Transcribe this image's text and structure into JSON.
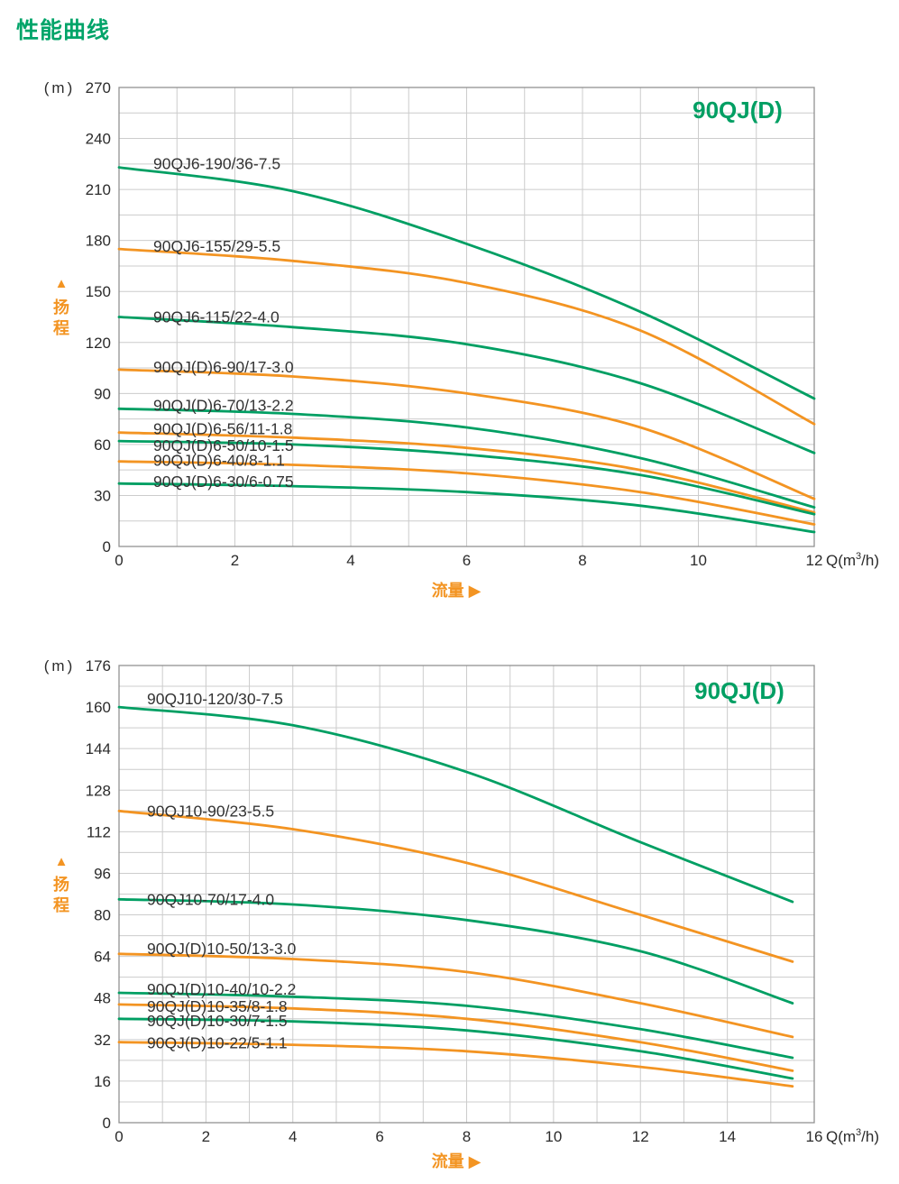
{
  "page": {
    "heading": "性能曲线"
  },
  "colors": {
    "green": "#009f63",
    "orange": "#f39422",
    "heading_green": "#00a469",
    "text": "#2b2b2b",
    "label_text": "#333333",
    "grid": "#cccccc",
    "frame": "#919191"
  },
  "chart_data": [
    {
      "type": "line",
      "title": "90QJ(D)",
      "y_unit": "(m)",
      "x_unit": "Q(m³/h)",
      "y_axis_name": "扬程",
      "y_axis_arrow": "▲",
      "x_axis_name": "流量",
      "x_axis_arrow": "▶",
      "xlabel": "流量 Q(m³/h)",
      "ylabel": "扬程 (m)",
      "xlim": [
        0,
        12
      ],
      "ylim": [
        0,
        270
      ],
      "x_ticks": [
        0,
        2,
        4,
        6,
        8,
        10,
        12
      ],
      "y_ticks": [
        0,
        30,
        60,
        90,
        120,
        150,
        180,
        210,
        240,
        270
      ],
      "x_minor_step": 1,
      "y_minor_step": 15,
      "grid": true,
      "legend": "curve labels inline above each curve",
      "series": [
        {
          "name": "90QJ6-190/36-7.5",
          "color": "green",
          "x": [
            0,
            3,
            6,
            9,
            12
          ],
          "y": [
            223,
            209,
            178,
            138,
            87
          ],
          "label_dy": 2
        },
        {
          "name": "90QJ6-155/29-5.5",
          "color": "orange",
          "x": [
            0,
            3,
            6,
            9,
            12
          ],
          "y": [
            175,
            168,
            155,
            127,
            72
          ],
          "label_dy": 3
        },
        {
          "name": "90QJ6-115/22-4.0",
          "color": "green",
          "x": [
            0,
            3,
            6,
            9,
            12
          ],
          "y": [
            135,
            129,
            119,
            96,
            55
          ],
          "label_dy": 6
        },
        {
          "name": "90QJ(D)6-90/17-3.0",
          "color": "orange",
          "x": [
            0,
            3,
            6,
            9,
            12
          ],
          "y": [
            104,
            100,
            90,
            70,
            28
          ],
          "label_dy": 3
        },
        {
          "name": "90QJ(D)6-70/13-2.2",
          "color": "green",
          "x": [
            0,
            3,
            6,
            9,
            12
          ],
          "y": [
            81,
            78,
            70,
            52,
            23
          ],
          "label_dy": 2
        },
        {
          "name": "90QJ(D)6-56/11-1.8",
          "color": "orange",
          "x": [
            0,
            3,
            6,
            9,
            12
          ],
          "y": [
            67,
            64,
            58,
            45,
            20
          ],
          "label_dy": 2
        },
        {
          "name": "90QJ(D)6-50/10-1.5",
          "color": "green",
          "x": [
            0,
            3,
            6,
            9,
            12
          ],
          "y": [
            62,
            60,
            54,
            42,
            19
          ],
          "label_dy": 11
        },
        {
          "name": "90QJ(D)6-40/8-1.1",
          "color": "orange",
          "x": [
            0,
            3,
            6,
            9,
            12
          ],
          "y": [
            50,
            48,
            43,
            32,
            13
          ],
          "label_dy": 5
        },
        {
          "name": "90QJ(D)6-30/6-0.75",
          "color": "green",
          "x": [
            0,
            3,
            6,
            9,
            12
          ],
          "y": [
            37,
            35.5,
            32,
            24,
            8.5
          ],
          "label_dy": 4
        }
      ]
    },
    {
      "type": "line",
      "title": "90QJ(D)",
      "y_unit": "(m)",
      "x_unit": "Q(m³/h)",
      "y_axis_name": "扬程",
      "y_axis_arrow": "▲",
      "x_axis_name": "流量",
      "x_axis_arrow": "▶",
      "xlabel": "流量 Q(m³/h)",
      "ylabel": "扬程 (m)",
      "xlim": [
        0,
        16
      ],
      "ylim": [
        0,
        176
      ],
      "x_ticks": [
        0,
        2,
        4,
        6,
        8,
        10,
        12,
        14,
        16
      ],
      "y_ticks": [
        0,
        16,
        32,
        48,
        64,
        80,
        96,
        112,
        128,
        144,
        160,
        176
      ],
      "x_minor_step": 1,
      "y_minor_step": 8,
      "grid": true,
      "legend": "curve labels inline above each curve",
      "series": [
        {
          "name": "90QJ10-120/30-7.5",
          "color": "green",
          "x": [
            0,
            4,
            8,
            12,
            15.5
          ],
          "y": [
            160,
            153,
            135,
            108,
            85
          ],
          "label_dy": -3
        },
        {
          "name": "90QJ10-90/23-5.5",
          "color": "orange",
          "x": [
            0,
            4,
            8,
            12,
            15.5
          ],
          "y": [
            120,
            113,
            100,
            80,
            62
          ],
          "label_dy": 6
        },
        {
          "name": "90QJ10-70/17-4.0",
          "color": "green",
          "x": [
            0,
            4,
            8,
            12,
            15.5
          ],
          "y": [
            86,
            84,
            78,
            66,
            46
          ],
          "label_dy": 6
        },
        {
          "name": "90QJ(D)10-50/13-3.0",
          "color": "orange",
          "x": [
            0,
            4,
            8,
            12,
            15.5
          ],
          "y": [
            65,
            63,
            58,
            46,
            33
          ],
          "label_dy": 0
        },
        {
          "name": "90QJ(D)10-40/10-2.2",
          "color": "green",
          "x": [
            0,
            4,
            8,
            12,
            15.5
          ],
          "y": [
            50,
            48.5,
            45,
            36,
            25
          ],
          "label_dy": 2
        },
        {
          "name": "90QJ(D)10-35/8-1.8",
          "color": "orange",
          "x": [
            0,
            4,
            8,
            12,
            15.5
          ],
          "y": [
            45.5,
            44,
            40,
            31,
            20
          ],
          "label_dy": 8
        },
        {
          "name": "90QJ(D)10-30/7-1.5",
          "color": "green",
          "x": [
            0,
            4,
            8,
            12,
            15.5
          ],
          "y": [
            40,
            39,
            35.5,
            27.5,
            17
          ],
          "label_dy": 8
        },
        {
          "name": "90QJ(D)10-22/5-1.1",
          "color": "orange",
          "x": [
            0,
            4,
            8,
            12,
            15.5
          ],
          "y": [
            31,
            30,
            27.5,
            21.5,
            14
          ],
          "label_dy": 7
        }
      ]
    }
  ]
}
